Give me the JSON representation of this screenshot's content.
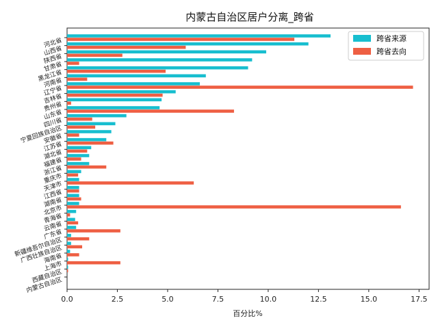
{
  "chart_data": {
    "type": "bar",
    "orientation": "horizontal",
    "title": "内蒙古自治区居户分离_跨省",
    "xlabel": "百分比%",
    "ylabel": "",
    "xlim": [
      0,
      18
    ],
    "xticks": [
      "0.0",
      "2.5",
      "5.0",
      "7.5",
      "10.0",
      "12.5",
      "15.0",
      "17.5"
    ],
    "grid": false,
    "legend_position": "top-right",
    "categories": [
      "河北省",
      "山西省",
      "陕西省",
      "甘肃省",
      "黑龙江省",
      "河南省",
      "辽宁省",
      "吉林省",
      "贵州省",
      "山东省",
      "四川省",
      "宁夏回族自治区",
      "安徽省",
      "江苏省",
      "湖北省",
      "福建省",
      "浙江省",
      "重庆市",
      "天津市",
      "江西省",
      "湖南省",
      "北京市",
      "青海省",
      "云南省",
      "广东省",
      "新疆维吾尔自治区",
      "广西壮族自治区",
      "海南省",
      "上海市",
      "西藏自治区",
      "内蒙古自治区"
    ],
    "series": [
      {
        "name": "跨省来源",
        "color": "#17becf",
        "values": [
          13.1,
          12.0,
          9.9,
          9.2,
          9.0,
          6.9,
          6.6,
          5.4,
          4.7,
          4.6,
          2.95,
          2.4,
          2.2,
          1.95,
          1.2,
          1.1,
          1.1,
          0.7,
          0.6,
          0.6,
          0.6,
          0.6,
          0.45,
          0.4,
          0.45,
          0.2,
          0.2,
          0.15,
          0.05,
          0.05,
          0.0
        ]
      },
      {
        "name": "跨省去向",
        "color": "#ee5f43",
        "values": [
          11.3,
          5.9,
          2.75,
          0.6,
          4.9,
          1.0,
          17.2,
          4.75,
          0.2,
          8.3,
          1.25,
          1.4,
          0.6,
          2.3,
          1.0,
          0.7,
          1.95,
          0.55,
          6.3,
          0.6,
          0.7,
          16.6,
          0.15,
          0.55,
          2.65,
          1.1,
          0.75,
          0.6,
          2.65,
          0.05,
          0.0
        ]
      }
    ]
  }
}
